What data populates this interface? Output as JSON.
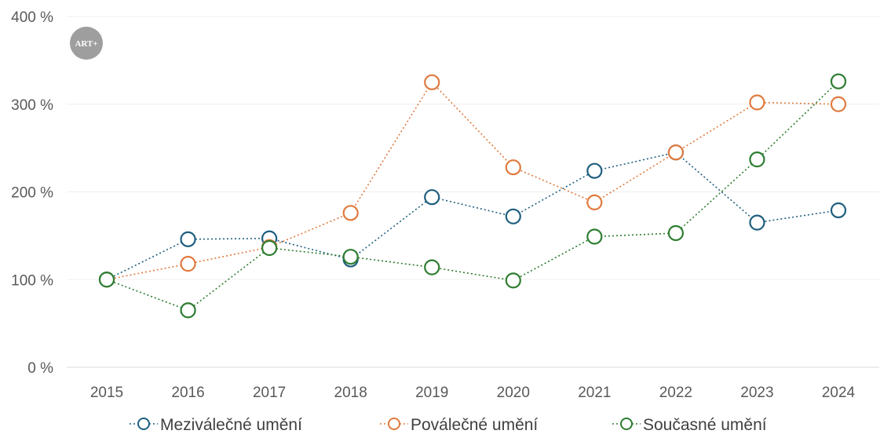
{
  "logo": {
    "text": "ART+",
    "color": "#9e9e9e"
  },
  "chart_data": {
    "type": "line",
    "title": "",
    "xlabel": "",
    "ylabel": "",
    "x": [
      "2015",
      "2016",
      "2017",
      "2018",
      "2019",
      "2020",
      "2021",
      "2022",
      "2023",
      "2024"
    ],
    "ylim": [
      0,
      400
    ],
    "yticks": [
      0,
      100,
      200,
      300,
      400
    ],
    "ytick_labels": [
      "0 %",
      "100 %",
      "200 %",
      "300 %",
      "400 %"
    ],
    "grid": true,
    "legend_position": "bottom",
    "line_style": "dotted",
    "marker": "open-circle",
    "series": [
      {
        "name": "Meziválečné umění",
        "color": "#1f5f7f",
        "values": [
          100,
          146,
          147,
          123,
          194,
          172,
          224,
          245,
          165,
          179
        ]
      },
      {
        "name": "Poválečné umění",
        "color": "#e07b3f",
        "values": [
          100,
          118,
          137,
          176,
          325,
          228,
          188,
          245,
          302,
          300
        ]
      },
      {
        "name": "Současné umění",
        "color": "#2e7d32",
        "values": [
          100,
          65,
          136,
          126,
          114,
          99,
          149,
          153,
          237,
          326
        ]
      }
    ]
  }
}
